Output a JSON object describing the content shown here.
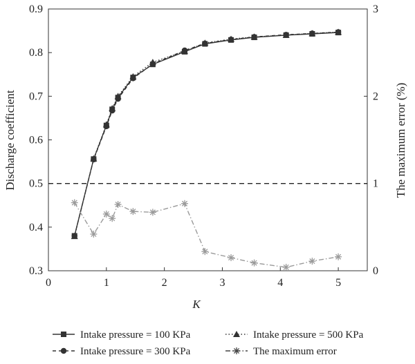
{
  "chart_data": {
    "type": "line",
    "xlabel": "K",
    "ylabel": "Discharge coefficient",
    "y2label": "The maximum error (%)",
    "xlim": [
      0,
      5.5
    ],
    "ylim": [
      0.3,
      0.9
    ],
    "y2lim": [
      0,
      3
    ],
    "xticks": [
      "0",
      "1",
      "2",
      "3",
      "4",
      "5"
    ],
    "yticks": [
      "0.3",
      "0.4",
      "0.5",
      "0.6",
      "0.7",
      "0.8",
      "0.9"
    ],
    "y2ticks": [
      "0",
      "1",
      "2",
      "3"
    ],
    "grid": false,
    "legend_position": "bottom",
    "reference_line": {
      "axis": "y2",
      "value": 1,
      "style": "dashed"
    },
    "series": [
      {
        "name": "Intake pressure = 100 KPa",
        "axis": "y",
        "marker": "square",
        "color": "#333333",
        "x": [
          0.45,
          0.78,
          1.0,
          1.1,
          1.2,
          1.46,
          1.8,
          2.35,
          2.7,
          3.15,
          3.55,
          4.1,
          4.55,
          5.0
        ],
        "y": [
          0.38,
          0.556,
          0.633,
          0.67,
          0.697,
          0.743,
          0.773,
          0.802,
          0.82,
          0.829,
          0.835,
          0.84,
          0.843,
          0.846
        ]
      },
      {
        "name": "Intake pressure = 300 KPa",
        "axis": "y",
        "marker": "circle",
        "color": "#333333",
        "x": [
          0.45,
          0.78,
          1.0,
          1.1,
          1.2,
          1.46,
          1.8,
          2.35,
          2.7,
          3.15,
          3.55,
          4.1,
          4.55,
          5.0
        ],
        "y": [
          0.38,
          0.555,
          0.631,
          0.667,
          0.694,
          0.741,
          0.774,
          0.805,
          0.821,
          0.83,
          0.836,
          0.841,
          0.844,
          0.847
        ]
      },
      {
        "name": "Intake pressure = 500 KPa",
        "axis": "y",
        "marker": "triangle",
        "color": "#333333",
        "x": [
          0.45,
          0.78,
          1.0,
          1.1,
          1.2,
          1.46,
          1.8,
          2.35,
          2.7,
          3.15,
          3.55,
          4.1,
          4.55,
          5.0
        ],
        "y": [
          0.379,
          0.557,
          0.635,
          0.672,
          0.7,
          0.745,
          0.778,
          0.803,
          0.822,
          0.831,
          0.836,
          0.84,
          0.844,
          0.847
        ]
      },
      {
        "name": "The maximum error",
        "axis": "y2",
        "marker": "asterisk",
        "color": "#9a9a9a",
        "x": [
          0.45,
          0.78,
          1.0,
          1.1,
          1.2,
          1.46,
          1.8,
          2.35,
          2.7,
          3.15,
          3.55,
          4.1,
          4.55,
          5.0
        ],
        "y": [
          0.78,
          0.42,
          0.65,
          0.6,
          0.76,
          0.68,
          0.67,
          0.77,
          0.22,
          0.15,
          0.09,
          0.04,
          0.11,
          0.16
        ]
      }
    ]
  }
}
